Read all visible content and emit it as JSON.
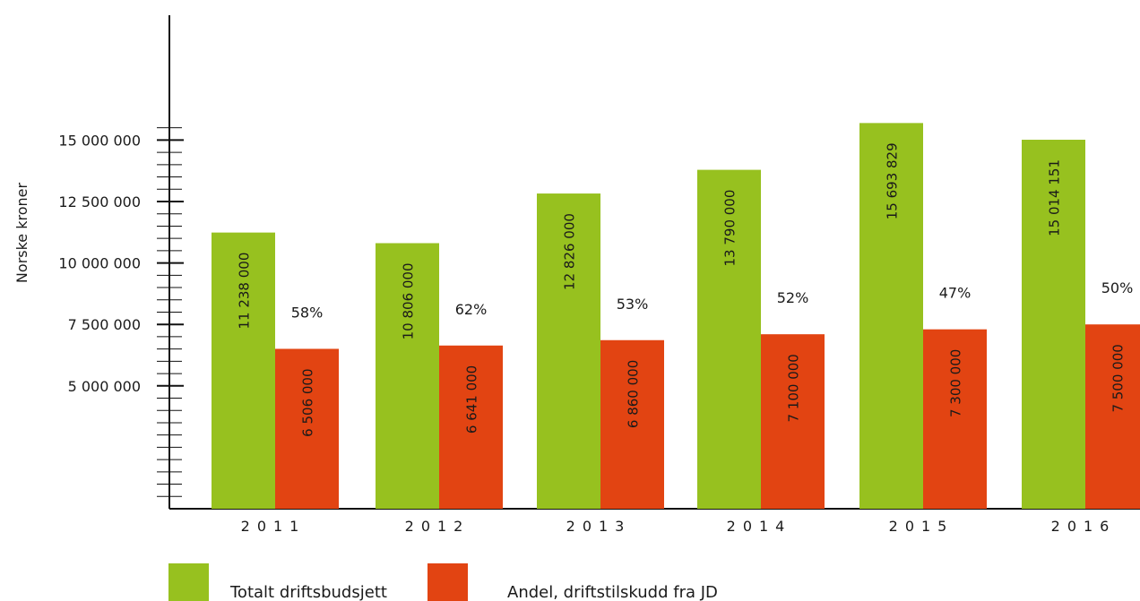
{
  "chart_data": {
    "type": "bar",
    "title": "",
    "ylabel": "Norske kroner",
    "xlabel": "",
    "ylim": [
      0,
      15000000
    ],
    "yticks": [
      {
        "value": 5000000,
        "label": "5 000 000"
      },
      {
        "value": 7500000,
        "label": "7 500 000"
      },
      {
        "value": 10000000,
        "label": "10 000 000"
      },
      {
        "value": 12500000,
        "label": "12 500 000"
      },
      {
        "value": 15000000,
        "label": "15 000 000"
      }
    ],
    "categories": [
      "2011",
      "2012",
      "2013",
      "2014",
      "2015",
      "2016"
    ],
    "series": [
      {
        "name": "Totalt driftsbudsjett",
        "color": "#97c11f",
        "values": [
          11238000,
          10806000,
          12826000,
          13790000,
          15693829,
          15014151
        ],
        "labels": [
          "11 238 000",
          "10 806 000",
          "12 826 000",
          "13 790 000",
          "15 693 829",
          "15 014 151"
        ]
      },
      {
        "name": "Andel, driftstilskudd fra JD",
        "color": "#e24412",
        "values": [
          6506000,
          6641000,
          6860000,
          7100000,
          7300000,
          7500000
        ],
        "labels": [
          "6 506 000",
          "6 641 000",
          "6 860 000",
          "7 100 000",
          "7 300 000",
          "7 500 000"
        ]
      }
    ],
    "annotations": [
      "58%",
      "62%",
      "53%",
      "52%",
      "47%",
      "50%"
    ],
    "legend": "bottom",
    "grid": false
  }
}
